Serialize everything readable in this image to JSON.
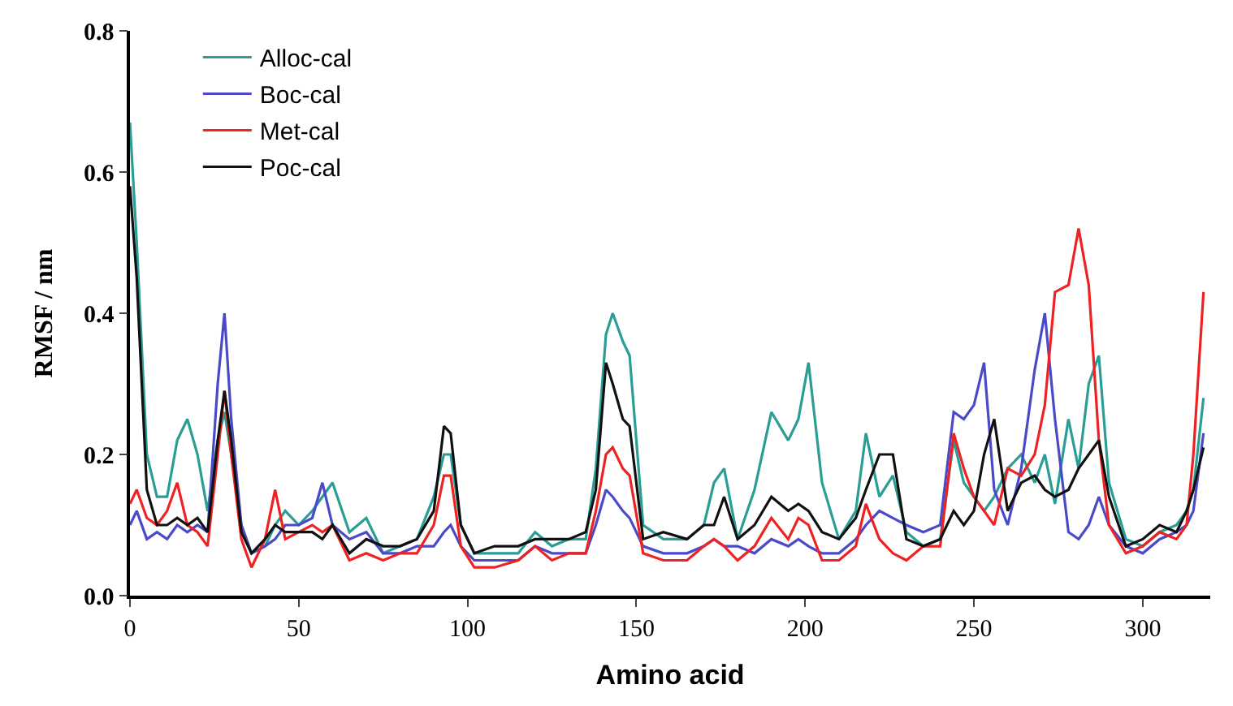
{
  "chart_data": {
    "type": "line",
    "xlabel": "Amino acid",
    "ylabel": "RMSF / nm",
    "x": [
      0,
      2,
      5,
      8,
      11,
      14,
      17,
      20,
      23,
      26,
      28,
      30,
      33,
      36,
      40,
      43,
      46,
      50,
      54,
      57,
      60,
      65,
      70,
      75,
      80,
      85,
      90,
      93,
      95,
      98,
      102,
      108,
      115,
      120,
      125,
      130,
      135,
      138,
      141,
      143,
      146,
      148,
      152,
      158,
      165,
      170,
      173,
      176,
      180,
      185,
      190,
      195,
      198,
      201,
      205,
      210,
      215,
      218,
      222,
      226,
      230,
      235,
      240,
      244,
      247,
      250,
      253,
      256,
      260,
      264,
      268,
      271,
      274,
      278,
      281,
      284,
      287,
      290,
      295,
      300,
      305,
      310,
      313,
      315,
      318
    ],
    "series": [
      {
        "name": "Alloc-cal",
        "color": "#2a9d94",
        "values": [
          0.67,
          0.5,
          0.2,
          0.14,
          0.14,
          0.22,
          0.25,
          0.2,
          0.12,
          0.22,
          0.26,
          0.2,
          0.1,
          0.06,
          0.07,
          0.1,
          0.12,
          0.1,
          0.12,
          0.14,
          0.16,
          0.09,
          0.11,
          0.06,
          0.07,
          0.08,
          0.14,
          0.2,
          0.2,
          0.1,
          0.06,
          0.06,
          0.06,
          0.09,
          0.07,
          0.08,
          0.08,
          0.18,
          0.37,
          0.4,
          0.36,
          0.34,
          0.1,
          0.08,
          0.08,
          0.1,
          0.16,
          0.18,
          0.08,
          0.15,
          0.26,
          0.22,
          0.25,
          0.33,
          0.16,
          0.08,
          0.12,
          0.23,
          0.14,
          0.17,
          0.09,
          0.07,
          0.08,
          0.22,
          0.16,
          0.14,
          0.12,
          0.14,
          0.18,
          0.2,
          0.16,
          0.2,
          0.13,
          0.25,
          0.18,
          0.3,
          0.34,
          0.16,
          0.08,
          0.07,
          0.09,
          0.1,
          0.12,
          0.15,
          0.28
        ]
      },
      {
        "name": "Boc-cal",
        "color": "#4a4ac8",
        "values": [
          0.1,
          0.12,
          0.08,
          0.09,
          0.08,
          0.1,
          0.09,
          0.1,
          0.09,
          0.3,
          0.4,
          0.25,
          0.1,
          0.06,
          0.07,
          0.08,
          0.1,
          0.1,
          0.11,
          0.16,
          0.1,
          0.08,
          0.09,
          0.06,
          0.06,
          0.07,
          0.07,
          0.09,
          0.1,
          0.07,
          0.05,
          0.05,
          0.05,
          0.07,
          0.06,
          0.06,
          0.06,
          0.1,
          0.15,
          0.14,
          0.12,
          0.11,
          0.07,
          0.06,
          0.06,
          0.07,
          0.08,
          0.07,
          0.07,
          0.06,
          0.08,
          0.07,
          0.08,
          0.07,
          0.06,
          0.06,
          0.08,
          0.1,
          0.12,
          0.11,
          0.1,
          0.09,
          0.1,
          0.26,
          0.25,
          0.27,
          0.33,
          0.15,
          0.1,
          0.18,
          0.32,
          0.4,
          0.25,
          0.09,
          0.08,
          0.1,
          0.14,
          0.1,
          0.07,
          0.06,
          0.08,
          0.09,
          0.1,
          0.12,
          0.23
        ]
      },
      {
        "name": "Met-cal",
        "color": "#ee2222",
        "values": [
          0.13,
          0.15,
          0.11,
          0.1,
          0.12,
          0.16,
          0.1,
          0.09,
          0.07,
          0.2,
          0.29,
          0.2,
          0.08,
          0.04,
          0.08,
          0.15,
          0.08,
          0.09,
          0.1,
          0.09,
          0.1,
          0.05,
          0.06,
          0.05,
          0.06,
          0.06,
          0.1,
          0.17,
          0.17,
          0.07,
          0.04,
          0.04,
          0.05,
          0.07,
          0.05,
          0.06,
          0.06,
          0.12,
          0.2,
          0.21,
          0.18,
          0.17,
          0.06,
          0.05,
          0.05,
          0.07,
          0.08,
          0.07,
          0.05,
          0.07,
          0.11,
          0.08,
          0.11,
          0.1,
          0.05,
          0.05,
          0.07,
          0.13,
          0.08,
          0.06,
          0.05,
          0.07,
          0.07,
          0.23,
          0.18,
          0.14,
          0.12,
          0.1,
          0.18,
          0.17,
          0.2,
          0.27,
          0.43,
          0.44,
          0.52,
          0.44,
          0.22,
          0.1,
          0.06,
          0.07,
          0.09,
          0.08,
          0.1,
          0.2,
          0.43
        ]
      },
      {
        "name": "Poc-cal",
        "color": "#111111",
        "values": [
          0.58,
          0.45,
          0.15,
          0.1,
          0.1,
          0.11,
          0.1,
          0.11,
          0.09,
          0.22,
          0.29,
          0.22,
          0.09,
          0.06,
          0.08,
          0.1,
          0.09,
          0.09,
          0.09,
          0.08,
          0.1,
          0.06,
          0.08,
          0.07,
          0.07,
          0.08,
          0.12,
          0.24,
          0.23,
          0.1,
          0.06,
          0.07,
          0.07,
          0.08,
          0.08,
          0.08,
          0.09,
          0.15,
          0.33,
          0.3,
          0.25,
          0.24,
          0.08,
          0.09,
          0.08,
          0.1,
          0.1,
          0.14,
          0.08,
          0.1,
          0.14,
          0.12,
          0.13,
          0.12,
          0.09,
          0.08,
          0.11,
          0.15,
          0.2,
          0.2,
          0.08,
          0.07,
          0.08,
          0.12,
          0.1,
          0.12,
          0.2,
          0.25,
          0.12,
          0.16,
          0.17,
          0.15,
          0.14,
          0.15,
          0.18,
          0.2,
          0.22,
          0.14,
          0.07,
          0.08,
          0.1,
          0.09,
          0.12,
          0.15,
          0.21
        ]
      }
    ],
    "xlim": [
      0,
      320
    ],
    "xticks": [
      0,
      50,
      100,
      150,
      200,
      250,
      300
    ],
    "ylim": [
      0,
      0.8
    ],
    "yticks": [
      {
        "value": 0,
        "label": "0.0"
      },
      {
        "value": 0.2,
        "label": "0.2"
      },
      {
        "value": 0.4,
        "label": "0.4"
      },
      {
        "value": 0.6,
        "label": "0.6"
      },
      {
        "value": 0.8,
        "label": "0.8"
      }
    ],
    "legend": "top left",
    "marker": "none",
    "line_style": "solid"
  }
}
